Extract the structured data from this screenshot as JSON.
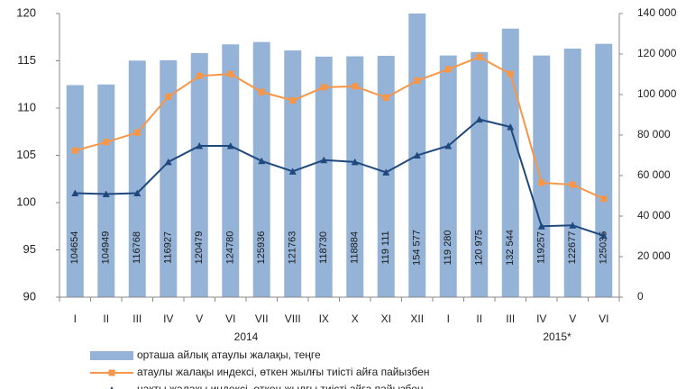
{
  "chart_data": {
    "type": "bar_line",
    "categories": [
      "I",
      "II",
      "III",
      "IV",
      "V",
      "VI",
      "VII",
      "VIII",
      "IX",
      "X",
      "XI",
      "XII",
      "I",
      "II",
      "III",
      "IV",
      "V",
      "VI"
    ],
    "groups": [
      "2014",
      "2015*"
    ],
    "ylim": [
      90,
      120
    ],
    "yticks": [
      90,
      95,
      100,
      105,
      110,
      115,
      120
    ],
    "y2lim": [
      0,
      140000
    ],
    "y2ticks": [
      0,
      {
        "value": 20000,
        "label": "20 000"
      },
      {
        "value": 40000,
        "label": "40 000"
      },
      {
        "value": 60000,
        "label": "60 000"
      },
      {
        "value": 80000,
        "label": "80 000"
      },
      {
        "value": 100000,
        "label": "100 000"
      },
      {
        "value": 120000,
        "label": "120 000"
      },
      {
        "value": 140000,
        "label": "140 000"
      }
    ],
    "series": [
      {
        "name": "орташа айлық атаулы жалақы, теңге",
        "type": "bar",
        "axis": "y2",
        "color": "#95b3d7",
        "values": [
          104654,
          104949,
          116768,
          116927,
          120479,
          124780,
          125936,
          121763,
          118730,
          118884,
          119111,
          154577,
          119280,
          120975,
          132544,
          119257,
          122677,
          125035
        ],
        "value_labels": [
          "104654",
          "104949",
          "116768",
          "116927",
          "120479",
          "124780",
          "125936",
          "121763",
          "118730",
          "118884",
          "119 111",
          "154 577",
          "119 280",
          "120 975",
          "132 544",
          "119257",
          "122677",
          "125035"
        ]
      },
      {
        "name": "атаулы жалақы индексі, өткен жылғы тиісті айға пайызбен",
        "type": "line",
        "color": "#f79646",
        "marker": "square",
        "values": [
          105.5,
          106.4,
          107.4,
          111.2,
          113.4,
          113.6,
          111.7,
          110.8,
          112.2,
          112.3,
          111.1,
          112.9,
          114.1,
          115.4,
          113.6,
          102.1,
          101.9,
          100.4
        ]
      },
      {
        "name": "нақты жалақы индексі, өткен жылғы тиісті айға пайызбен",
        "type": "line",
        "color": "#1f497d",
        "marker": "triangle",
        "values": [
          101.0,
          100.9,
          101.0,
          104.3,
          106.0,
          106.0,
          104.4,
          103.3,
          104.5,
          104.3,
          103.2,
          105.0,
          106.0,
          108.8,
          108.0,
          97.5,
          97.6,
          96.5
        ]
      }
    ]
  }
}
